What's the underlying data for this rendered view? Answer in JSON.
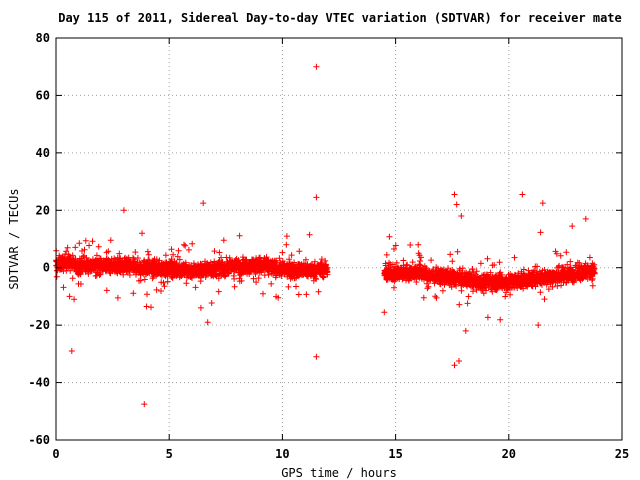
{
  "chart_data": {
    "type": "scatter",
    "title": "Day 115 of 2011, Sidereal Day-to-day VTEC variation (SDTVAR) for receiver mate",
    "xlabel": "GPS time / hours",
    "ylabel": "SDTVAR / TECUs",
    "xlim": [
      0,
      25
    ],
    "ylim": [
      -60,
      80
    ],
    "xticks": [
      "0",
      "5",
      "10",
      "15",
      "20",
      "25"
    ],
    "yticks": [
      "80",
      "60",
      "40",
      "20",
      "0",
      "-20",
      "-40",
      "-60"
    ],
    "grid": true,
    "marker": "+",
    "colors": {
      "series": "#ff0000",
      "grid": "#a0a0a0",
      "axes": "#000000"
    },
    "band_segments": [
      {
        "x": [
          0.0,
          0.5,
          1.0,
          2.0,
          3.0,
          4.0,
          5.0,
          6.0,
          7.0,
          8.0,
          9.0,
          10.0,
          11.0,
          12.0
        ],
        "y": [
          1.0,
          2.0,
          0.5,
          1.0,
          0.5,
          0.0,
          -0.5,
          -1.0,
          -0.5,
          0.5,
          1.0,
          -0.5,
          -1.0,
          -0.5
        ]
      },
      {
        "x": [
          14.5,
          15.0,
          16.0,
          16.5,
          17.0,
          18.0,
          19.0,
          20.0,
          21.0,
          22.0,
          23.0,
          23.8
        ],
        "y": [
          -2.0,
          -2.0,
          -1.5,
          -3.0,
          -3.0,
          -4.0,
          -5.0,
          -5.0,
          -4.0,
          -3.0,
          -2.0,
          -1.0
        ]
      }
    ],
    "outliers": {
      "x": [
        11.5,
        11.5,
        11.5,
        0.7,
        3.9,
        3.0,
        6.5,
        6.7,
        16.0,
        17.6,
        17.7,
        17.9,
        18.1,
        20.6,
        21.5,
        22.8,
        23.4,
        14.5,
        17.6,
        17.8,
        21.3,
        3.8,
        4.0,
        0.6,
        0.8,
        6.4,
        10.2,
        11.2
      ],
      "y": [
        70.0,
        24.5,
        -31.0,
        -29.0,
        -47.5,
        20.0,
        22.5,
        -19.0,
        8.0,
        25.5,
        22.0,
        18.0,
        -22.0,
        25.5,
        22.5,
        14.5,
        17.0,
        -15.5,
        -34.0,
        -32.5,
        -20.0,
        12.0,
        -13.5,
        -10.0,
        -11.0,
        -14.0,
        11.0,
        11.5
      ]
    }
  }
}
